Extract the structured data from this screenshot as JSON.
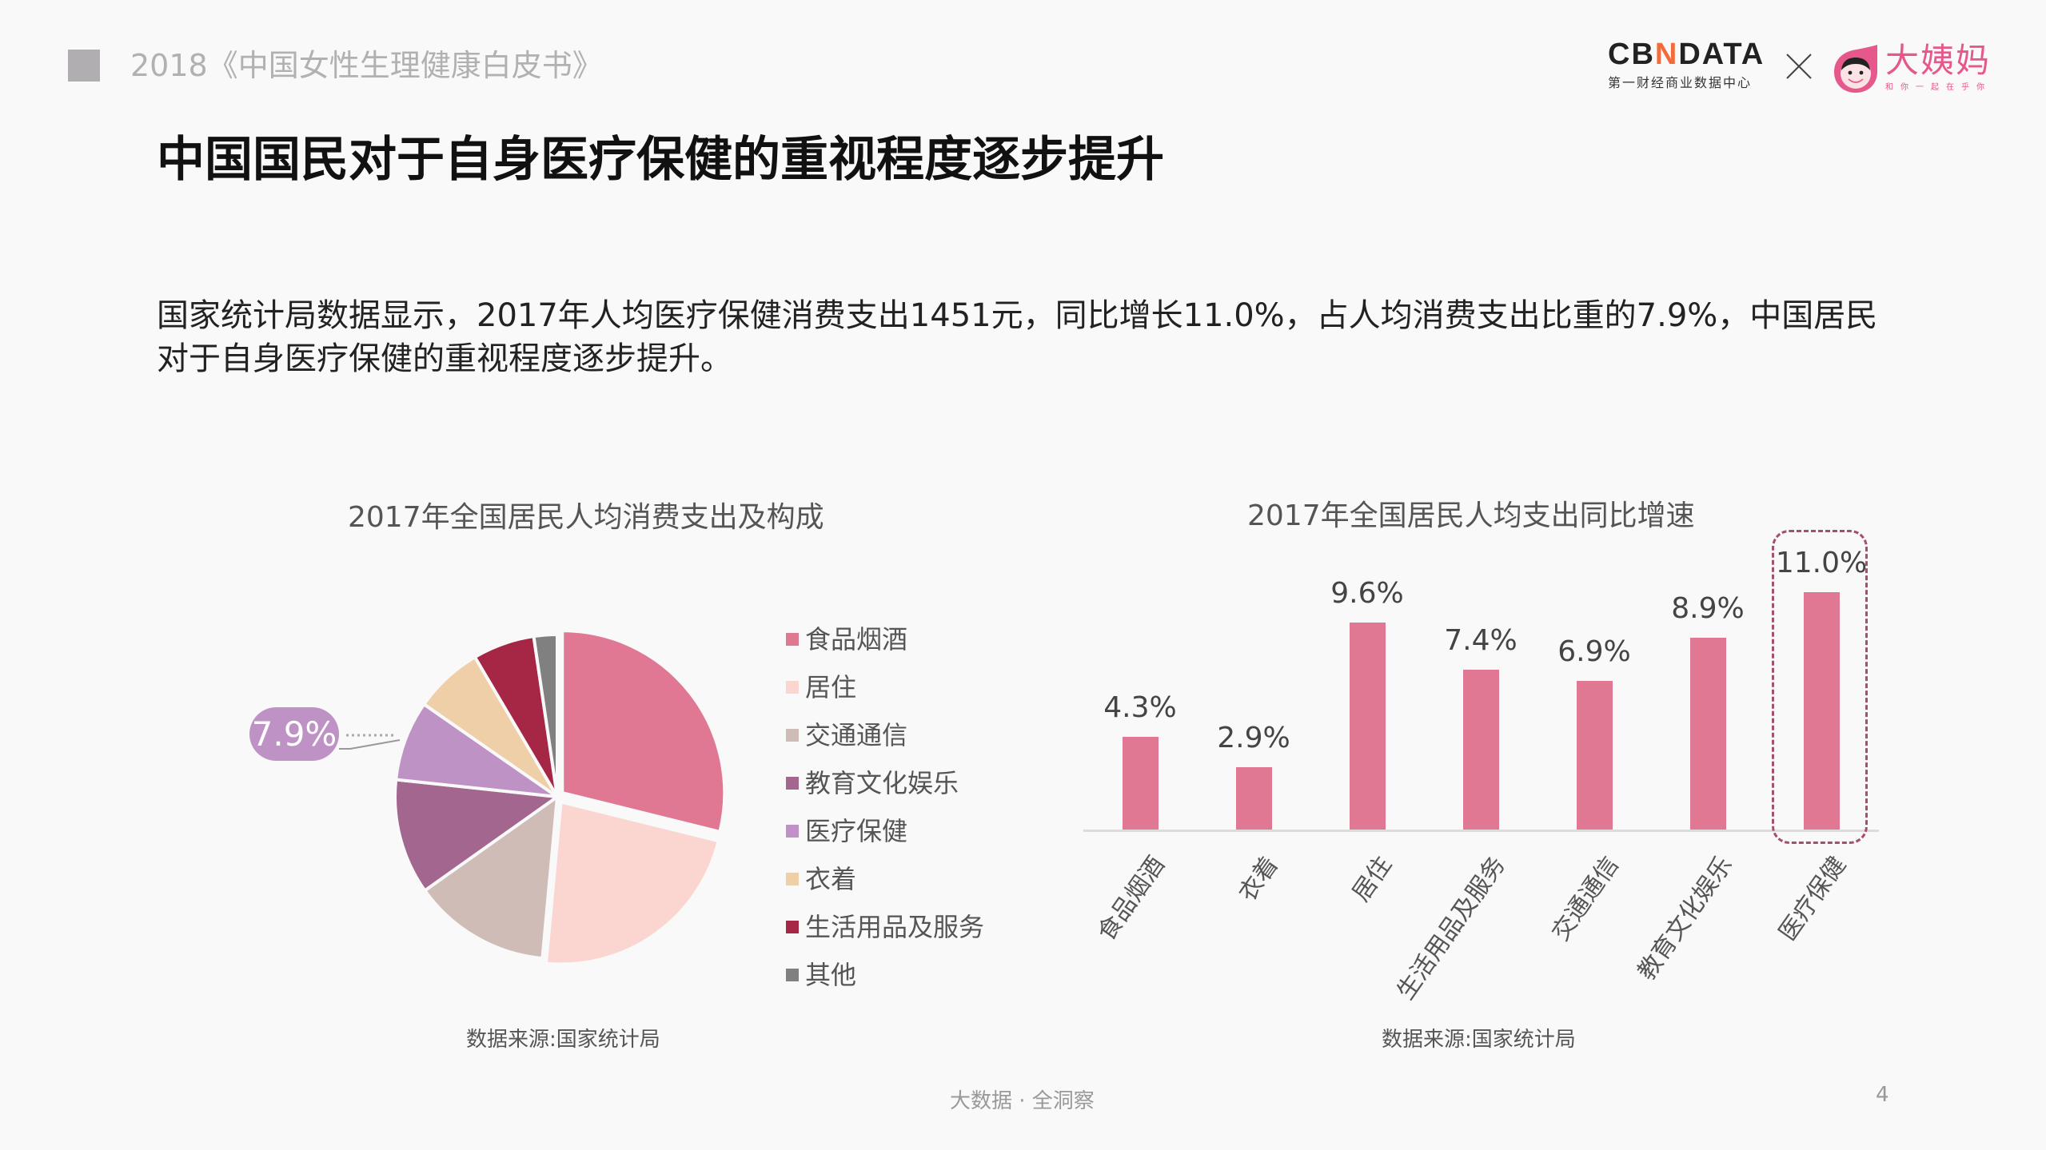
{
  "header": {
    "report_title": "2018《中国女性生理健康白皮书》",
    "logos": {
      "cbn_word_left": "CB",
      "cbn_word_n": "N",
      "cbn_word_right": "DATA",
      "cbn_subtitle": "第一财经商业数据中心",
      "separator": "×",
      "partner_name": "大姨妈",
      "partner_tagline": "和你一起在乎你"
    }
  },
  "page": {
    "title": "中国国民对于自身医疗保健的重视程度逐步提升",
    "intro": "国家统计局数据显示，2017年人均医疗保健消费支出1451元，同比增长11.0%，占人均消费支出比重的7.9%，中国居民对于自身医疗保健的重视程度逐步提升。"
  },
  "colors": {
    "accent": "#e07893",
    "highlight_border": "#a3506f",
    "callout": "#bf92c6"
  },
  "chart_data": [
    {
      "type": "pie",
      "title": "2017年全国居民人均消费支出及构成",
      "categories": [
        "食品烟酒",
        "居住",
        "交通通信",
        "教育文化娱乐",
        "医疗保健",
        "衣着",
        "生活用品及服务",
        "其他"
      ],
      "values": [
        28.6,
        22.4,
        13.6,
        11.4,
        7.9,
        6.8,
        6.1,
        2.3
      ],
      "unit": "%",
      "colors": [
        "#e07893",
        "#fbd5d0",
        "#cfbcb7",
        "#a2668f",
        "#bf92c6",
        "#eecfa8",
        "#a62645",
        "#808080"
      ],
      "annotation": {
        "label": "7.9%",
        "category": "医疗保健"
      },
      "legend_position": "right",
      "source": "数据来源:国家统计局"
    },
    {
      "type": "bar",
      "title": "2017年全国居民人均支出同比增速",
      "categories": [
        "食品烟酒",
        "衣着",
        "居住",
        "生活用品及服务",
        "交通通信",
        "教育文化娱乐",
        "医疗保健"
      ],
      "values": [
        4.3,
        2.9,
        9.6,
        7.4,
        6.9,
        8.9,
        11.0
      ],
      "labels": [
        "4.3%",
        "2.9%",
        "9.6%",
        "7.4%",
        "6.9%",
        "8.9%",
        "11.0%"
      ],
      "unit": "%",
      "xlabel": "",
      "ylabel": "",
      "ylim": [
        0,
        12
      ],
      "grid": false,
      "highlighted": "医疗保健",
      "color": "#e07893",
      "source": "数据来源:国家统计局"
    }
  ],
  "footer": {
    "tagline": "大数据 · 全洞察",
    "page_number": "4"
  }
}
